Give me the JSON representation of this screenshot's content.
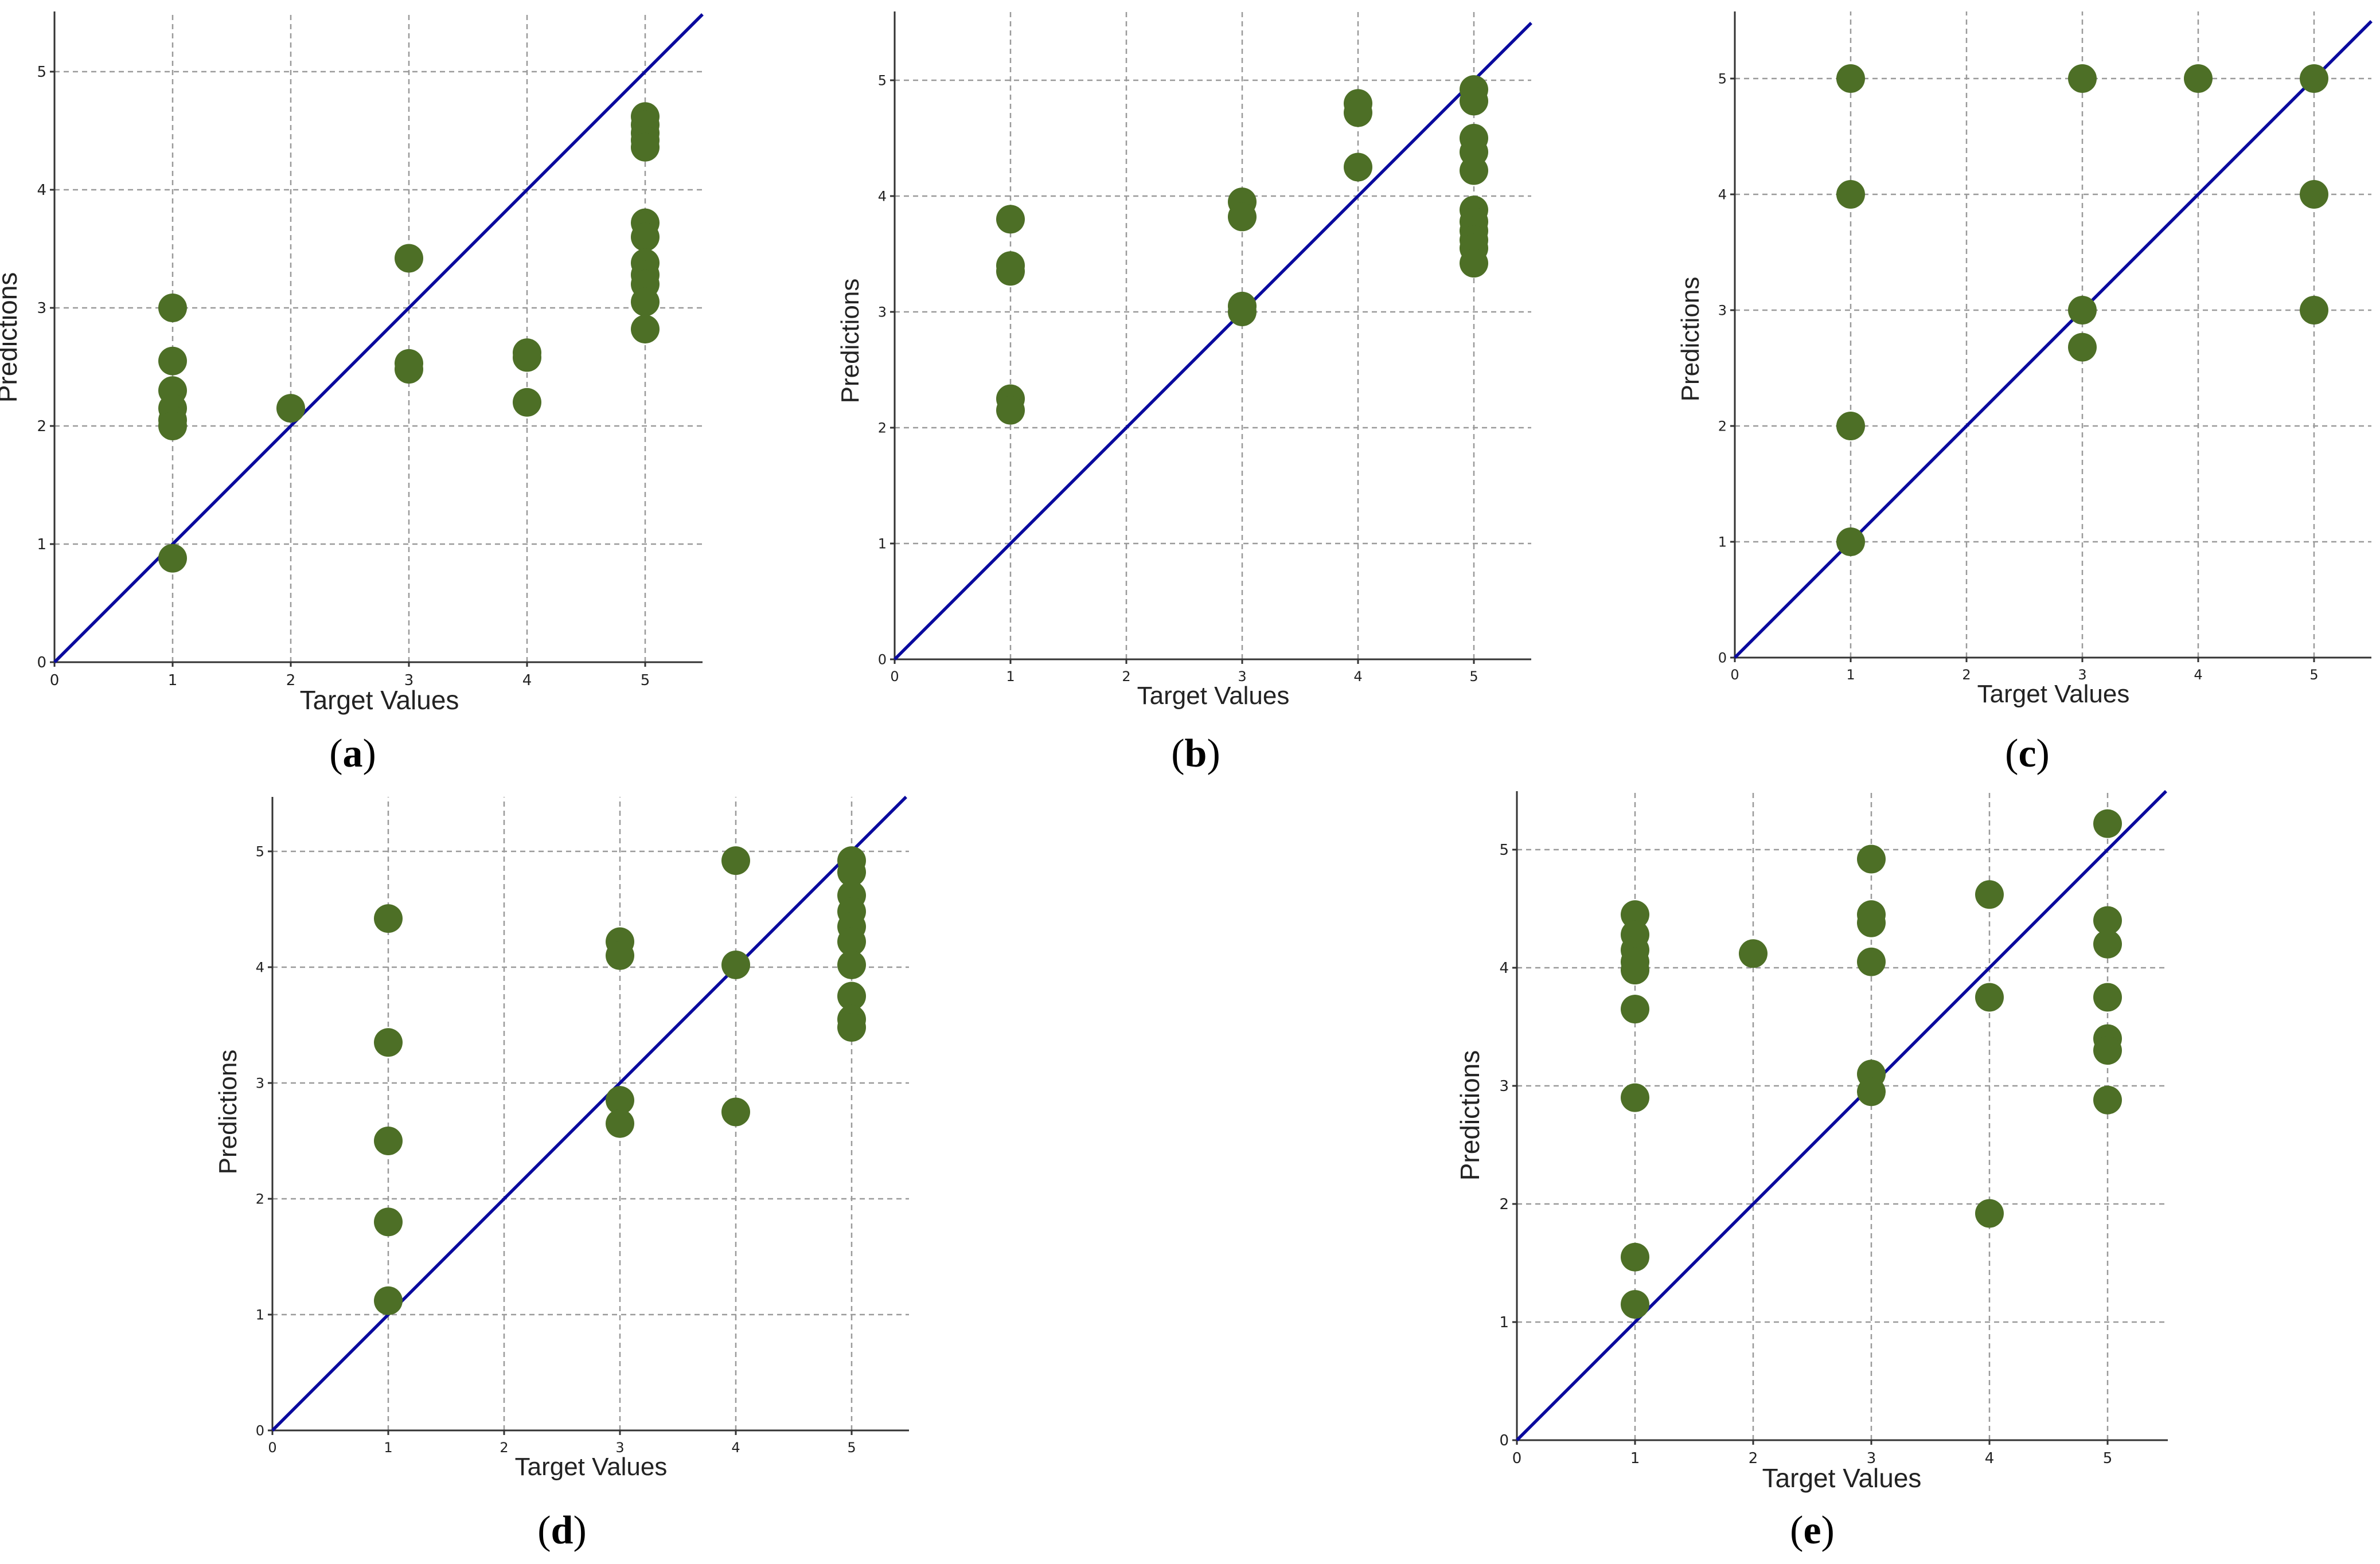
{
  "chart_data": [
    {
      "type": "scatter",
      "panel_label": "a",
      "xlabel": "Target Values",
      "ylabel": "Predictions",
      "xlim": [
        0,
        5.5
      ],
      "ylim": [
        0,
        5.5
      ],
      "xticks": [
        0,
        1,
        2,
        3,
        4,
        5
      ],
      "yticks": [
        0,
        1,
        2,
        3,
        4,
        5
      ],
      "grid": true,
      "reference_line": "y = x",
      "point_color": "#4d6f26",
      "line_color": "#0a0a9e",
      "points": [
        [
          1,
          3.0
        ],
        [
          1,
          2.55
        ],
        [
          1,
          2.3
        ],
        [
          1,
          2.15
        ],
        [
          1,
          2.05
        ],
        [
          1,
          2.0
        ],
        [
          1,
          0.88
        ],
        [
          2,
          2.15
        ],
        [
          3,
          3.42
        ],
        [
          3,
          2.53
        ],
        [
          3,
          2.48
        ],
        [
          4,
          2.62
        ],
        [
          4,
          2.58
        ],
        [
          4,
          2.2
        ],
        [
          5,
          4.62
        ],
        [
          5,
          4.55
        ],
        [
          5,
          4.48
        ],
        [
          5,
          4.42
        ],
        [
          5,
          4.36
        ],
        [
          5,
          3.72
        ],
        [
          5,
          3.6
        ],
        [
          5,
          3.38
        ],
        [
          5,
          3.28
        ],
        [
          5,
          3.2
        ],
        [
          5,
          3.05
        ],
        [
          5,
          2.82
        ]
      ]
    },
    {
      "type": "scatter",
      "panel_label": "b",
      "xlabel": "Target Values",
      "ylabel": "Predictions",
      "xlim": [
        0,
        5.5
      ],
      "ylim": [
        0,
        5.5
      ],
      "xticks": [
        0,
        1,
        2,
        3,
        4,
        5
      ],
      "yticks": [
        0,
        1,
        2,
        3,
        4,
        5
      ],
      "grid": true,
      "reference_line": "y = x",
      "point_color": "#4d6f26",
      "line_color": "#0a0a9e",
      "points": [
        [
          1,
          3.8
        ],
        [
          1,
          3.4
        ],
        [
          1,
          3.35
        ],
        [
          1,
          2.25
        ],
        [
          1,
          2.15
        ],
        [
          3,
          3.95
        ],
        [
          3,
          3.82
        ],
        [
          3,
          3.05
        ],
        [
          3,
          3.0
        ],
        [
          4,
          4.8
        ],
        [
          4,
          4.72
        ],
        [
          4,
          4.25
        ],
        [
          5,
          4.92
        ],
        [
          5,
          4.82
        ],
        [
          5,
          4.5
        ],
        [
          5,
          4.38
        ],
        [
          5,
          4.22
        ],
        [
          5,
          3.88
        ],
        [
          5,
          3.78
        ],
        [
          5,
          3.7
        ],
        [
          5,
          3.62
        ],
        [
          5,
          3.55
        ],
        [
          5,
          3.42
        ]
      ]
    },
    {
      "type": "scatter",
      "panel_label": "c",
      "xlabel": "Target Values",
      "ylabel": "Predictions",
      "xlim": [
        0,
        5.5
      ],
      "ylim": [
        0,
        5.5
      ],
      "xticks": [
        0,
        1,
        2,
        3,
        4,
        5
      ],
      "yticks": [
        0,
        1,
        2,
        3,
        4,
        5
      ],
      "grid": true,
      "reference_line": "y = x",
      "point_color": "#4d6f26",
      "line_color": "#0a0a9e",
      "points": [
        [
          1,
          5.0
        ],
        [
          1,
          4.0
        ],
        [
          1,
          2.0
        ],
        [
          1,
          1.0
        ],
        [
          3,
          5.0
        ],
        [
          3,
          3.0
        ],
        [
          3,
          2.68
        ],
        [
          4,
          5.0
        ],
        [
          5,
          5.0
        ],
        [
          5,
          4.0
        ],
        [
          5,
          3.0
        ]
      ]
    },
    {
      "type": "scatter",
      "panel_label": "d",
      "xlabel": "Target Values",
      "ylabel": "Predictions",
      "xlim": [
        0,
        5.5
      ],
      "ylim": [
        0,
        5.5
      ],
      "xticks": [
        0,
        1,
        2,
        3,
        4,
        5
      ],
      "yticks": [
        0,
        1,
        2,
        3,
        4,
        5
      ],
      "grid": true,
      "reference_line": "y = x",
      "point_color": "#4d6f26",
      "line_color": "#0a0a9e",
      "points": [
        [
          1,
          4.42
        ],
        [
          1,
          3.35
        ],
        [
          1,
          2.5
        ],
        [
          1,
          1.8
        ],
        [
          1,
          1.12
        ],
        [
          3,
          4.22
        ],
        [
          3,
          4.1
        ],
        [
          3,
          2.85
        ],
        [
          3,
          2.65
        ],
        [
          4,
          4.92
        ],
        [
          4,
          4.02
        ],
        [
          4,
          2.75
        ],
        [
          5,
          4.92
        ],
        [
          5,
          4.82
        ],
        [
          5,
          4.62
        ],
        [
          5,
          4.48
        ],
        [
          5,
          4.35
        ],
        [
          5,
          4.22
        ],
        [
          5,
          4.02
        ],
        [
          5,
          3.75
        ],
        [
          5,
          3.55
        ],
        [
          5,
          3.48
        ]
      ]
    },
    {
      "type": "scatter",
      "panel_label": "e",
      "xlabel": "Target Values",
      "ylabel": "Predictions",
      "xlim": [
        0,
        5.5
      ],
      "ylim": [
        0,
        5.5
      ],
      "xticks": [
        0,
        1,
        2,
        3,
        4,
        5
      ],
      "yticks": [
        0,
        1,
        2,
        3,
        4,
        5
      ],
      "grid": true,
      "reference_line": "y = x",
      "point_color": "#4d6f26",
      "line_color": "#0a0a9e",
      "points": [
        [
          1,
          4.45
        ],
        [
          1,
          4.28
        ],
        [
          1,
          4.15
        ],
        [
          1,
          4.05
        ],
        [
          1,
          3.98
        ],
        [
          1,
          3.65
        ],
        [
          1,
          2.9
        ],
        [
          1,
          1.55
        ],
        [
          1,
          1.15
        ],
        [
          2,
          4.12
        ],
        [
          3,
          4.92
        ],
        [
          3,
          4.45
        ],
        [
          3,
          4.38
        ],
        [
          3,
          4.05
        ],
        [
          3,
          3.1
        ],
        [
          3,
          2.95
        ],
        [
          4,
          4.62
        ],
        [
          4,
          3.75
        ],
        [
          4,
          1.92
        ],
        [
          5,
          5.22
        ],
        [
          5,
          4.4
        ],
        [
          5,
          4.2
        ],
        [
          5,
          3.75
        ],
        [
          5,
          3.4
        ],
        [
          5,
          3.3
        ],
        [
          5,
          2.88
        ]
      ]
    }
  ]
}
